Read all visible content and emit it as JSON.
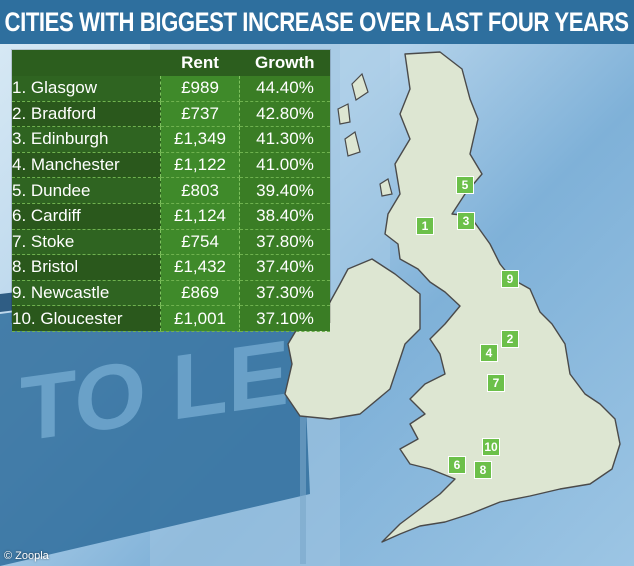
{
  "header": {
    "title": "CITIES WITH BIGGEST INCREASE OVER LAST FOUR YEARS"
  },
  "photo_sign": {
    "text": "TO LET"
  },
  "source": {
    "text": "© Zoopla"
  },
  "colors": {
    "title_bg": "#2e6f9e",
    "table_bg": "#2c5e1e",
    "rent_column": "#3f8a2a",
    "growth_column": "#3a7d25",
    "marker": "#6cc04a",
    "land": "#dde6d2",
    "border": "#4a4a4a"
  },
  "chart_data": {
    "type": "table",
    "title": "CITIES WITH BIGGEST INCREASE OVER LAST FOUR YEARS",
    "columns": [
      "",
      "Rent",
      "Growth"
    ],
    "rows": [
      {
        "rank": 1,
        "city": "1. Glasgow",
        "rent": "£989",
        "growth": "44.40%"
      },
      {
        "rank": 2,
        "city": "2. Bradford",
        "rent": "£737",
        "growth": "42.80%"
      },
      {
        "rank": 3,
        "city": "3. Edinburgh",
        "rent": "£1,349",
        "growth": "41.30%"
      },
      {
        "rank": 4,
        "city": "4. Manchester",
        "rent": "£1,122",
        "growth": "41.00%"
      },
      {
        "rank": 5,
        "city": "5. Dundee",
        "rent": "£803",
        "growth": "39.40%"
      },
      {
        "rank": 6,
        "city": "6. Cardiff",
        "rent": "£1,124",
        "growth": "38.40%"
      },
      {
        "rank": 7,
        "city": "7. Stoke",
        "rent": "£754",
        "growth": "37.80%"
      },
      {
        "rank": 8,
        "city": "8. Bristol",
        "rent": "£1,432",
        "growth": "37.40%"
      },
      {
        "rank": 9,
        "city": "9. Newcastle",
        "rent": "£869",
        "growth": "37.30%"
      },
      {
        "rank": 10,
        "city": "10. Gloucester",
        "rent": "£1,001",
        "growth": "37.10%"
      }
    ],
    "map_markers": [
      "5",
      "1",
      "3",
      "9",
      "2",
      "4",
      "7",
      "10",
      "6",
      "8"
    ]
  }
}
